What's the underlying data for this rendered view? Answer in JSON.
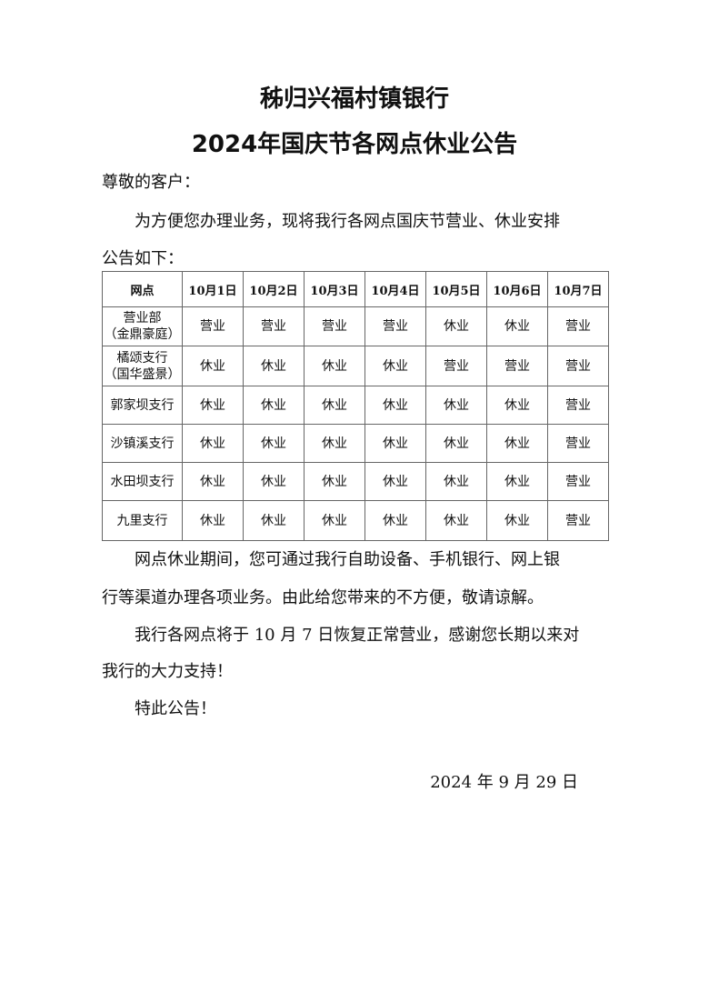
{
  "title_line1": "秭归兴福村镇银行",
  "title_line2": "2024年国庆节各网点休业公告",
  "greeting": "尊敬的客户：",
  "intro_line1": "为方便您办理业务，现将我行各网点国庆节营业、休业安排",
  "intro_line2": "公告如下：",
  "table": {
    "header": [
      "网点",
      "10月1日",
      "10月2日",
      "10月3日",
      "10月4日",
      "10月5日",
      "10月6日",
      "10月7日"
    ],
    "rows": [
      {
        "name": "营业部",
        "sub": "（金鼎豪庭）",
        "days": [
          "营业",
          "营业",
          "营业",
          "营业",
          "休业",
          "休业",
          "营业"
        ]
      },
      {
        "name": "橘颂支行",
        "sub": "（国华盛景）",
        "days": [
          "休业",
          "休业",
          "休业",
          "休业",
          "营业",
          "营业",
          "营业"
        ]
      },
      {
        "name": "郭家坝支行",
        "sub": "",
        "days": [
          "休业",
          "休业",
          "休业",
          "休业",
          "休业",
          "休业",
          "营业"
        ]
      },
      {
        "name": "沙镇溪支行",
        "sub": "",
        "days": [
          "休业",
          "休业",
          "休业",
          "休业",
          "休业",
          "休业",
          "营业"
        ]
      },
      {
        "name": "水田坝支行",
        "sub": "",
        "days": [
          "休业",
          "休业",
          "休业",
          "休业",
          "休业",
          "休业",
          "营业"
        ]
      },
      {
        "name": "九里支行",
        "sub": "",
        "days": [
          "休业",
          "休业",
          "休业",
          "休业",
          "休业",
          "休业",
          "营业"
        ]
      }
    ]
  },
  "para1_line1": "网点休业期间，您可通过我行自助设备、手机银行、网上银",
  "para1_line2": "行等渠道办理各项业务。由此给您带来的不方便，敬请谅解。",
  "para2_line1": "我行各网点将于 10 月 7 日恢复正常营业，感谢您长期以来对",
  "para2_line2": "我行的大力支持！",
  "closing": "特此公告！",
  "date": "2024 年 9 月 29 日"
}
